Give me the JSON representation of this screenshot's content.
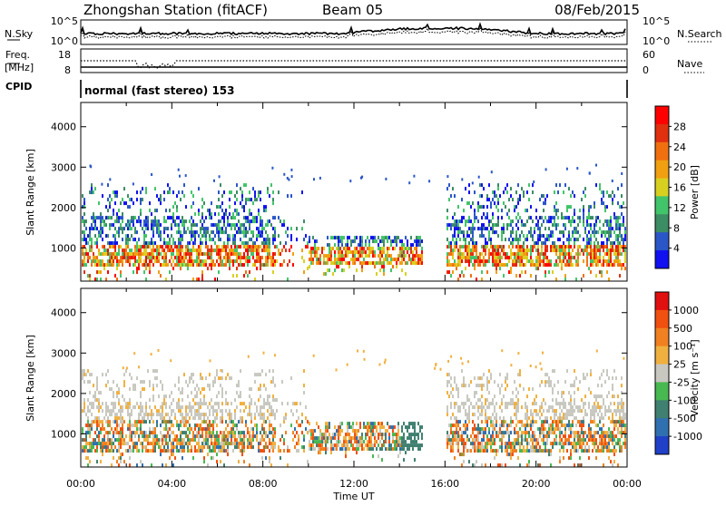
{
  "header": {
    "station": "Zhongshan Station (fitACF)",
    "beam": "Beam 05",
    "date": "08/Feb/2015"
  },
  "noise_panel": {
    "left_label": "N.Sky",
    "right_label": "N.Search",
    "left_ticks": [
      "10^5",
      "10^0"
    ],
    "right_ticks": [
      "10^5",
      "10^0"
    ]
  },
  "freq_panel": {
    "left_label_1": "Freq.",
    "left_label_2": "[MHz]",
    "left_ticks": [
      "18",
      "8"
    ],
    "right_ticks": [
      "60",
      "0"
    ],
    "right_label": "Nave",
    "cpid_label": "CPID",
    "cpid_text": "normal (fast stereo) 153"
  },
  "chart_data": [
    {
      "type": "heatmap",
      "name": "Power",
      "ylabel": "Slant Range [km]",
      "yticks": [
        "4000",
        "3000",
        "2000",
        "1000"
      ],
      "ylim": [
        180,
        4600
      ],
      "xlim_hours": [
        0,
        24
      ],
      "colorbar": {
        "label": "Power [dB]",
        "ticks": [
          "28",
          "24",
          "20",
          "16",
          "12",
          "8",
          "4"
        ],
        "colors": [
          "#1010f0",
          "#2a56c8",
          "#3c8c64",
          "#42c46a",
          "#d8d020",
          "#f0a010",
          "#f07010",
          "#e03010",
          "#ff0000"
        ]
      }
    },
    {
      "type": "heatmap",
      "name": "Velocity",
      "ylabel": "Slant Range [km]",
      "yticks": [
        "4000",
        "3000",
        "2000",
        "1000"
      ],
      "ylim": [
        180,
        4600
      ],
      "xlim_hours": [
        0,
        24
      ],
      "xlabel": "Time UT",
      "xticks": [
        "00:00",
        "04:00",
        "08:00",
        "12:00",
        "16:00",
        "20:00",
        "00:00"
      ],
      "colorbar": {
        "label": "Velocity [m s⁻¹]",
        "ticks": [
          "1000",
          "500",
          "100",
          "25",
          "-25",
          "-100",
          "-500",
          "-1000"
        ],
        "colors": [
          "#2040c8",
          "#3070b0",
          "#408070",
          "#48b850",
          "#c8c8c0",
          "#f0b040",
          "#f08020",
          "#f05010",
          "#e01010"
        ]
      }
    }
  ]
}
